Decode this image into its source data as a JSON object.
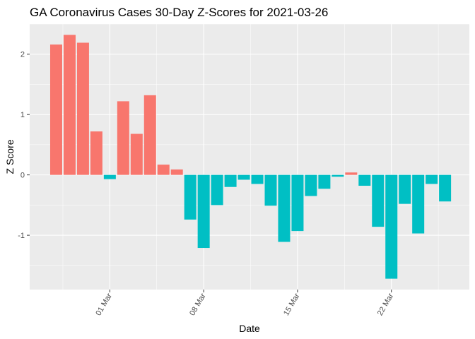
{
  "chart_data": {
    "type": "bar",
    "title": "GA Coronavirus Cases 30-Day Z-Scores for 2021-03-26",
    "xlabel": "Date",
    "ylabel": "Z Score",
    "x_tick_labels": [
      "01 Mar",
      "08 Mar",
      "15 Mar",
      "22 Mar"
    ],
    "y_tick_labels": [
      "-1",
      "0",
      "1",
      "2"
    ],
    "ylim": [
      -1.9,
      2.5
    ],
    "grid": true,
    "legend": "none",
    "colors": {
      "positive": "#F8766D",
      "negative": "#00BFC4",
      "panel": "#EBEBEB",
      "grid": "#FFFFFF"
    },
    "categories": [
      "2021-02-25",
      "2021-02-26",
      "2021-02-27",
      "2021-02-28",
      "2021-03-01",
      "2021-03-02",
      "2021-03-03",
      "2021-03-04",
      "2021-03-05",
      "2021-03-06",
      "2021-03-07",
      "2021-03-08",
      "2021-03-09",
      "2021-03-10",
      "2021-03-11",
      "2021-03-12",
      "2021-03-13",
      "2021-03-14",
      "2021-03-15",
      "2021-03-16",
      "2021-03-17",
      "2021-03-18",
      "2021-03-19",
      "2021-03-20",
      "2021-03-21",
      "2021-03-22",
      "2021-03-23",
      "2021-03-24",
      "2021-03-25",
      "2021-03-26"
    ],
    "values": [
      2.16,
      2.32,
      2.19,
      0.72,
      -0.07,
      1.22,
      0.68,
      1.32,
      0.17,
      0.09,
      -0.74,
      -1.21,
      -0.5,
      -0.2,
      -0.08,
      -0.15,
      -0.51,
      -1.11,
      -0.93,
      -0.35,
      -0.23,
      -0.03,
      0.04,
      -0.18,
      -0.86,
      -1.72,
      -0.48,
      -0.97,
      -0.15,
      -0.44
    ]
  }
}
